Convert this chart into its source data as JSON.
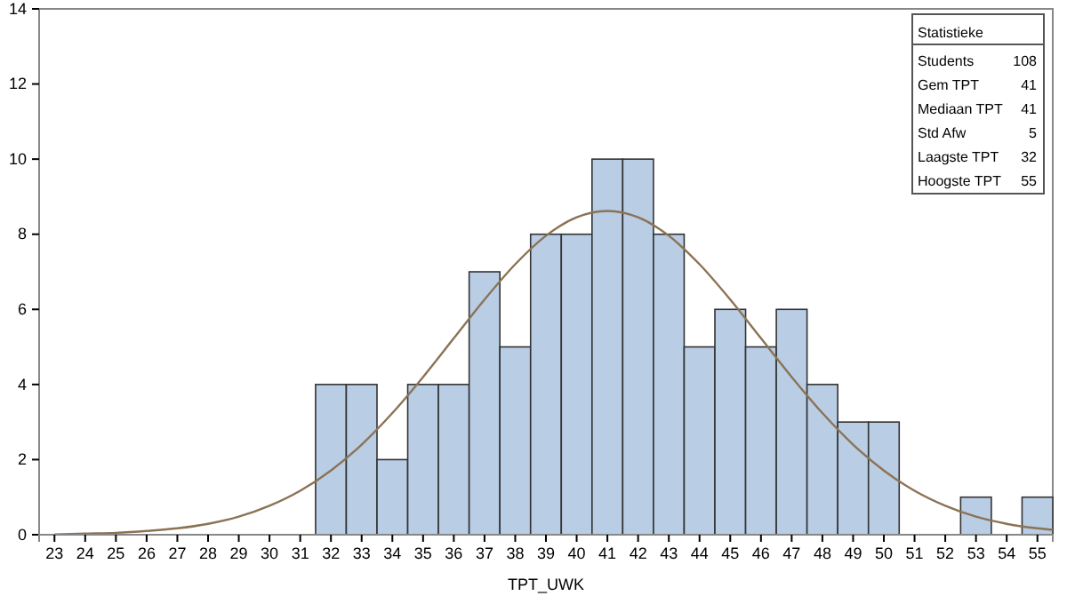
{
  "chart_data": {
    "type": "histogram",
    "xlabel": "TPT_UWK",
    "color": "#b9cde5",
    "bins": [
      22.5,
      23.5,
      24.5,
      25.5,
      26.5,
      27.5,
      28.5,
      29.5,
      30.5,
      31.5,
      32.5,
      33.5,
      34.5,
      35.5,
      36.5,
      37.5,
      38.5,
      39.5,
      40.5,
      41.5,
      42.5,
      43.5,
      44.5,
      45.5,
      46.5,
      47.5,
      48.5,
      49.5,
      50.5,
      51.5,
      52.5,
      53.5,
      54.5,
      55.5
    ],
    "values": [
      0,
      0,
      0,
      0,
      0,
      0,
      0,
      0,
      0,
      4,
      4,
      2,
      4,
      4,
      7,
      5,
      8,
      8,
      10,
      10,
      8,
      5,
      6,
      5,
      6,
      4,
      3,
      3,
      0,
      0,
      1,
      0,
      1
    ],
    "series": [
      {
        "type": "line",
        "color": "#8b7355",
        "x": [
          23,
          24,
          25,
          26,
          27,
          28,
          29,
          30,
          31,
          32,
          33,
          34,
          35,
          36,
          37,
          38,
          39,
          40,
          41,
          42,
          43,
          44,
          45,
          46,
          47,
          48,
          49,
          50,
          51,
          52,
          53,
          54,
          55,
          55.5
        ],
        "values": [
          0.01,
          0.03,
          0.05,
          0.1,
          0.17,
          0.29,
          0.48,
          0.77,
          1.17,
          1.71,
          2.4,
          3.24,
          4.2,
          5.23,
          6.26,
          7.2,
          7.96,
          8.45,
          8.62,
          8.45,
          7.96,
          7.2,
          6.26,
          5.23,
          4.2,
          3.24,
          2.4,
          1.71,
          1.17,
          0.77,
          0.48,
          0.29,
          0.17,
          0.13
        ]
      }
    ],
    "xlim": [
      22.5,
      55.5
    ],
    "ylim": [
      0,
      14
    ],
    "xticks": [
      23,
      24,
      25,
      26,
      27,
      28,
      29,
      30,
      31,
      32,
      33,
      34,
      35,
      36,
      37,
      38,
      39,
      40,
      41,
      42,
      43,
      44,
      45,
      46,
      47,
      48,
      49,
      50,
      51,
      52,
      53,
      54,
      55
    ],
    "yticks": [
      0,
      2,
      4,
      6,
      8,
      10,
      12,
      14
    ],
    "grid": false,
    "annotations": [
      "Statistieke",
      "Students",
      "108",
      "Gem TPT",
      "41",
      "Mediaan TPT",
      "41",
      "Std Afw",
      "5",
      "Laagste TPT",
      "32",
      "Hoogste TPT",
      "55"
    ]
  }
}
